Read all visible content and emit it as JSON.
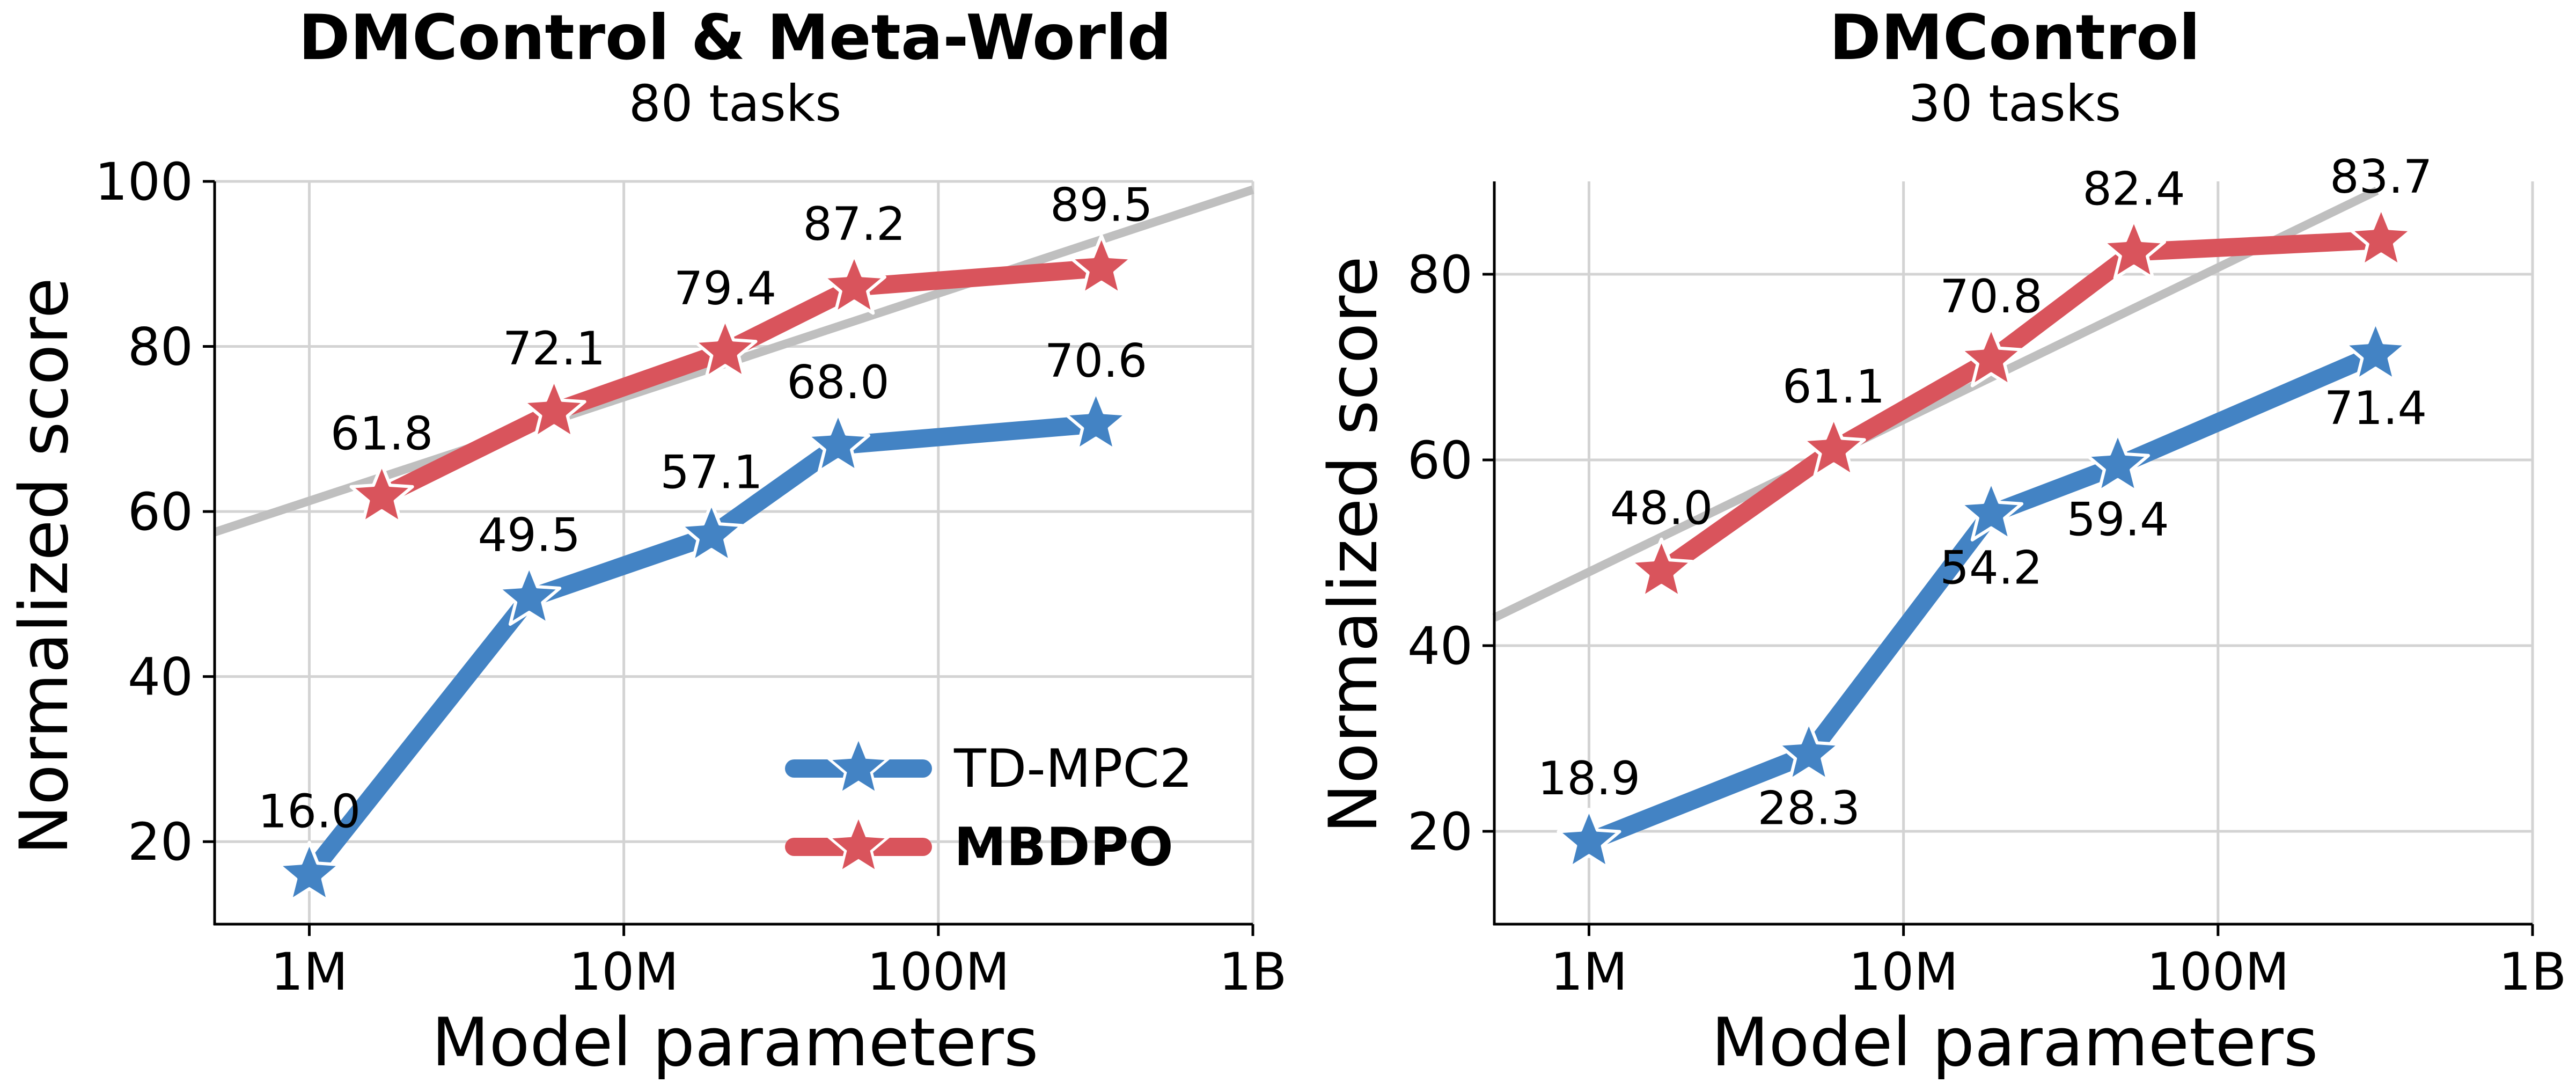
{
  "chart_data": [
    {
      "type": "line",
      "title": "DMControl & Meta-World",
      "subtitle": "80 tasks",
      "xlabel": "Model parameters",
      "ylabel": "Normalized score",
      "x_scale": "log",
      "xlim": [
        500000,
        1000000000
      ],
      "ylim": [
        10,
        100
      ],
      "x_ticks": [
        1000000,
        10000000,
        100000000,
        1000000000
      ],
      "x_tick_labels": [
        "1M",
        "10M",
        "100M",
        "1B"
      ],
      "y_ticks": [
        20,
        40,
        60,
        80,
        100
      ],
      "y_tick_labels": [
        "20",
        "40",
        "60",
        "80",
        "100"
      ],
      "grid": true,
      "legend": {
        "position": "bottom-right",
        "entries": [
          "TD-MPC2",
          "MBDPO"
        ],
        "bold": [
          false,
          true
        ]
      },
      "trend_line": {
        "color": "#bfbfbf",
        "points": [
          [
            500000,
            57.5
          ],
          [
            1000000000,
            99
          ]
        ]
      },
      "series": [
        {
          "name": "TD-MPC2",
          "color": "#4383c4",
          "x": [
            1000000,
            5000000,
            19000000,
            48000000,
            317000000
          ],
          "values": [
            16.0,
            49.5,
            57.1,
            68.0,
            70.6
          ],
          "labels": [
            "16.0",
            "49.5",
            "57.1",
            "68.0",
            "70.6"
          ],
          "label_side": [
            "above",
            "above",
            "above",
            "above",
            "above"
          ]
        },
        {
          "name": "MBDPO",
          "color": "#d9545c",
          "x": [
            1700000,
            6000000,
            21000000,
            54000000,
            330000000
          ],
          "values": [
            61.8,
            72.1,
            79.4,
            87.2,
            89.5
          ],
          "labels": [
            "61.8",
            "72.1",
            "79.4",
            "87.2",
            "89.5"
          ],
          "label_side": [
            "above",
            "above",
            "above",
            "above",
            "above"
          ]
        }
      ]
    },
    {
      "type": "line",
      "title": "DMControl",
      "subtitle": "30 tasks",
      "xlabel": "Model parameters",
      "ylabel": "Normalized score",
      "x_scale": "log",
      "xlim": [
        500000,
        1000000000
      ],
      "ylim": [
        10,
        90
      ],
      "x_ticks": [
        1000000,
        10000000,
        100000000,
        1000000000
      ],
      "x_tick_labels": [
        "1M",
        "10M",
        "100M",
        "1B"
      ],
      "y_ticks": [
        20,
        40,
        60,
        80
      ],
      "y_tick_labels": [
        "20",
        "40",
        "60",
        "80"
      ],
      "grid": true,
      "trend_line": {
        "color": "#bfbfbf",
        "points": [
          [
            500000,
            43
          ],
          [
            320000000,
            89
          ]
        ]
      },
      "series": [
        {
          "name": "TD-MPC2",
          "color": "#4383c4",
          "x": [
            1000000,
            5000000,
            19000000,
            48000000,
            317000000
          ],
          "values": [
            18.9,
            28.3,
            54.2,
            59.4,
            71.4
          ],
          "labels": [
            "18.9",
            "28.3",
            "54.2",
            "59.4",
            "71.4"
          ],
          "label_side": [
            "above",
            "below",
            "below",
            "below",
            "below"
          ]
        },
        {
          "name": "MBDPO",
          "color": "#d9545c",
          "x": [
            1700000,
            6000000,
            19000000,
            54000000,
            330000000
          ],
          "values": [
            48.0,
            61.1,
            70.8,
            82.4,
            83.7
          ],
          "labels": [
            "48.0",
            "61.1",
            "70.8",
            "82.4",
            "83.7"
          ],
          "label_side": [
            "above",
            "above",
            "above",
            "above",
            "above"
          ]
        }
      ]
    }
  ]
}
